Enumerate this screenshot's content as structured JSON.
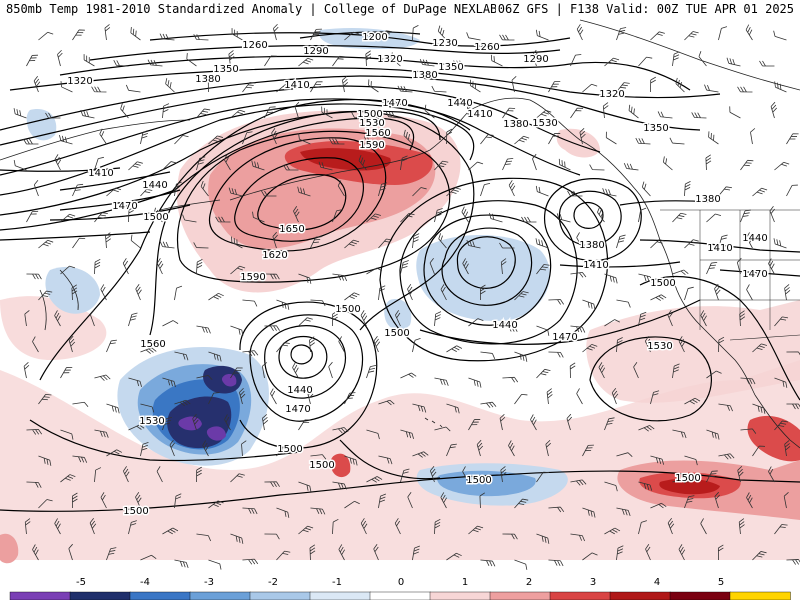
{
  "header": {
    "left_title": "850mb Temp 1981-2010 Standardized Anomaly | College of DuPage NEXLAB",
    "right_title": "06Z GFS | F138 Valid: 00Z TUE APR 01 2025"
  },
  "contours": {
    "units": "geopotential height (dam)",
    "labels": [
      "1200",
      "1230",
      "1260",
      "1260",
      "1290",
      "1290",
      "1320",
      "1320",
      "1320",
      "1350",
      "1350",
      "1350",
      "1380",
      "1380",
      "1380",
      "1380",
      "1380",
      "1410",
      "1410",
      "1410",
      "1410",
      "1410",
      "1440",
      "1440",
      "1440",
      "1440",
      "1440",
      "1470",
      "1470",
      "1470",
      "1470",
      "1470",
      "1500",
      "1500",
      "1500",
      "1500",
      "1500",
      "1500",
      "1500",
      "1500",
      "1500",
      "1500",
      "1530",
      "1530",
      "1530",
      "1530",
      "1560",
      "1560",
      "1590",
      "1590",
      "1620",
      "1650"
    ]
  },
  "colorbar": {
    "ticks": [
      "-5",
      "-4",
      "-3",
      "-2",
      "-1",
      "0",
      "1",
      "2",
      "3",
      "4",
      "5"
    ],
    "colors": [
      "#7a3fb5",
      "#1f2f6b",
      "#3a76c5",
      "#6ba0d8",
      "#a9c8e8",
      "#dbe8f5",
      "#ffffff",
      "#f7d6d6",
      "#ee9f9f",
      "#d94444",
      "#b01818",
      "#7a0010",
      "#ffd400"
    ]
  },
  "anomaly_palette": {
    "neg5": "#6b3aa8",
    "neg4": "#26306e",
    "neg3": "#3a77c4",
    "neg2": "#7aa9dc",
    "neg1": "#c5d9ee",
    "pos1": "#f6d3d3",
    "pos2": "#ec9f9f",
    "pos3": "#db4b4b",
    "pos4": "#b81c1c"
  }
}
